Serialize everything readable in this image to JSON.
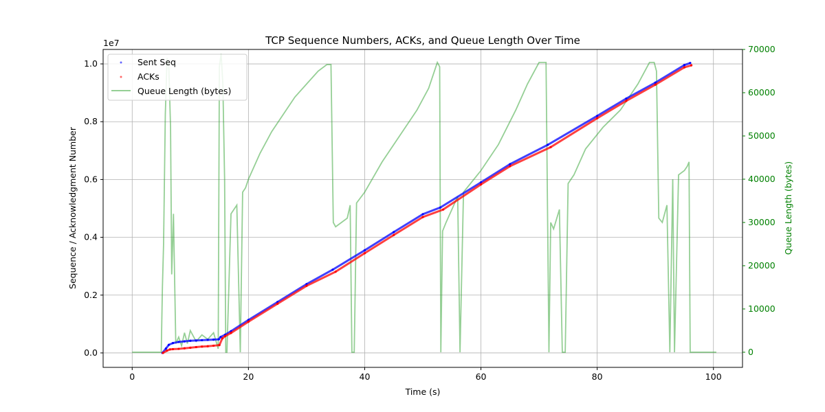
{
  "chart_data": {
    "type": "line",
    "title": "TCP Sequence Numbers, ACKs, and Queue Length Over Time",
    "xlabel": "Time (s)",
    "ylabel": "Sequence / Acknowledgment Number",
    "ylabel_right": "Queue Length (bytes)",
    "offset_text": "1e7",
    "xlim": [
      -5,
      105
    ],
    "ylim": [
      -0.05,
      1.05
    ],
    "ylim_right": [
      -3500,
      70000
    ],
    "xticks": [
      "0",
      "20",
      "40",
      "60",
      "80",
      "100"
    ],
    "yticks": [
      "0.0",
      "0.2",
      "0.4",
      "0.6",
      "0.8",
      "1.0"
    ],
    "yticks_right": [
      "0",
      "10000",
      "20000",
      "30000",
      "40000",
      "50000",
      "60000",
      "70000"
    ],
    "grid": true,
    "legend_position": "top-left",
    "series": [
      {
        "name": "Sent Seq",
        "color": "#0000ff",
        "marker": "dot",
        "axis": "left",
        "x": [
          5.2,
          5.8,
          6.3,
          7.0,
          8.0,
          9.0,
          10.0,
          11.0,
          12.0,
          13.0,
          14.0,
          14.9,
          15.2,
          16.0,
          17.0,
          20.0,
          25.0,
          30.0,
          34.5,
          40.0,
          45.0,
          50.0,
          53.0,
          60.0,
          65.0,
          71.5,
          80.0,
          85.0,
          90.0,
          95.0,
          96.0
        ],
        "y": [
          0.0,
          0.015,
          0.028,
          0.034,
          0.038,
          0.04,
          0.042,
          0.043,
          0.044,
          0.045,
          0.046,
          0.047,
          0.055,
          0.063,
          0.075,
          0.114,
          0.176,
          0.238,
          0.288,
          0.355,
          0.418,
          0.48,
          0.503,
          0.59,
          0.653,
          0.72,
          0.82,
          0.88,
          0.935,
          0.996,
          1.003
        ]
      },
      {
        "name": "ACKs",
        "color": "#ff0000",
        "marker": "dot",
        "axis": "left",
        "x": [
          5.3,
          6.0,
          6.5,
          7.0,
          8.0,
          9.0,
          10.0,
          11.0,
          12.0,
          13.0,
          14.0,
          15.0,
          15.5,
          16.0,
          17.0,
          20.0,
          25.0,
          30.0,
          35.0,
          40.0,
          45.0,
          50.0,
          53.5,
          60.0,
          65.0,
          72.0,
          80.0,
          85.0,
          90.0,
          95.0,
          96.2
        ],
        "y": [
          0.0,
          0.008,
          0.012,
          0.013,
          0.014,
          0.016,
          0.018,
          0.02,
          0.022,
          0.023,
          0.025,
          0.027,
          0.05,
          0.058,
          0.069,
          0.108,
          0.17,
          0.232,
          0.281,
          0.345,
          0.408,
          0.47,
          0.496,
          0.583,
          0.646,
          0.712,
          0.812,
          0.872,
          0.928,
          0.988,
          0.995
        ]
      },
      {
        "name": "Queue Length (bytes)",
        "color": "#2ca02c",
        "marker": "none",
        "axis": "right",
        "x": [
          0,
          5.0,
          5.2,
          5.4,
          5.7,
          6.0,
          6.3,
          6.6,
          6.8,
          7.1,
          7.5,
          8.0,
          8.5,
          9.0,
          9.5,
          10.0,
          11.0,
          12.0,
          13.0,
          14.0,
          14.8,
          15.0,
          15.3,
          15.6,
          15.9,
          16.1,
          16.3,
          17.0,
          18.0,
          18.6,
          19.0,
          19.5,
          20.0,
          22.0,
          24.0,
          26.0,
          28.0,
          30.0,
          32.0,
          33.5,
          34.2,
          34.6,
          35.0,
          36.0,
          37.0,
          37.5,
          37.8,
          38.2,
          38.6,
          40.0,
          43.0,
          46.0,
          49.0,
          51.0,
          52.5,
          52.9,
          53.1,
          53.4,
          54.0,
          56.0,
          56.4,
          57.0,
          60.0,
          63.0,
          66.0,
          68.0,
          70.0,
          71.2,
          71.7,
          72.0,
          72.5,
          73.5,
          74.0,
          74.5,
          75.0,
          76.0,
          78.0,
          81.0,
          84.0,
          87.0,
          89.0,
          89.8,
          90.2,
          90.6,
          91.2,
          92.0,
          92.5,
          93.0,
          93.3,
          94.0,
          95.0,
          95.5,
          95.8,
          96.0,
          100.5
        ],
        "y": [
          0,
          0,
          15000,
          25000,
          55000,
          68000,
          66000,
          52000,
          18000,
          32000,
          2000,
          3500,
          1500,
          4500,
          2000,
          5000,
          2500,
          4000,
          3000,
          4500,
          800,
          66000,
          69000,
          62000,
          40000,
          0,
          0,
          32000,
          34000,
          0,
          37000,
          38000,
          40000,
          46000,
          51000,
          55000,
          59000,
          62000,
          65000,
          66500,
          66500,
          30000,
          29000,
          30000,
          31000,
          34000,
          0,
          0,
          34500,
          37000,
          44000,
          50000,
          56000,
          61000,
          67000,
          66000,
          0,
          28000,
          30000,
          36000,
          0,
          37000,
          42000,
          48000,
          56000,
          62000,
          67000,
          67000,
          0,
          30000,
          28500,
          33000,
          0,
          0,
          39000,
          41000,
          47000,
          52000,
          56000,
          62000,
          67000,
          67000,
          65000,
          31000,
          30000,
          34000,
          0,
          40000,
          0,
          41000,
          42000,
          43000,
          44000,
          0,
          0
        ]
      }
    ]
  }
}
